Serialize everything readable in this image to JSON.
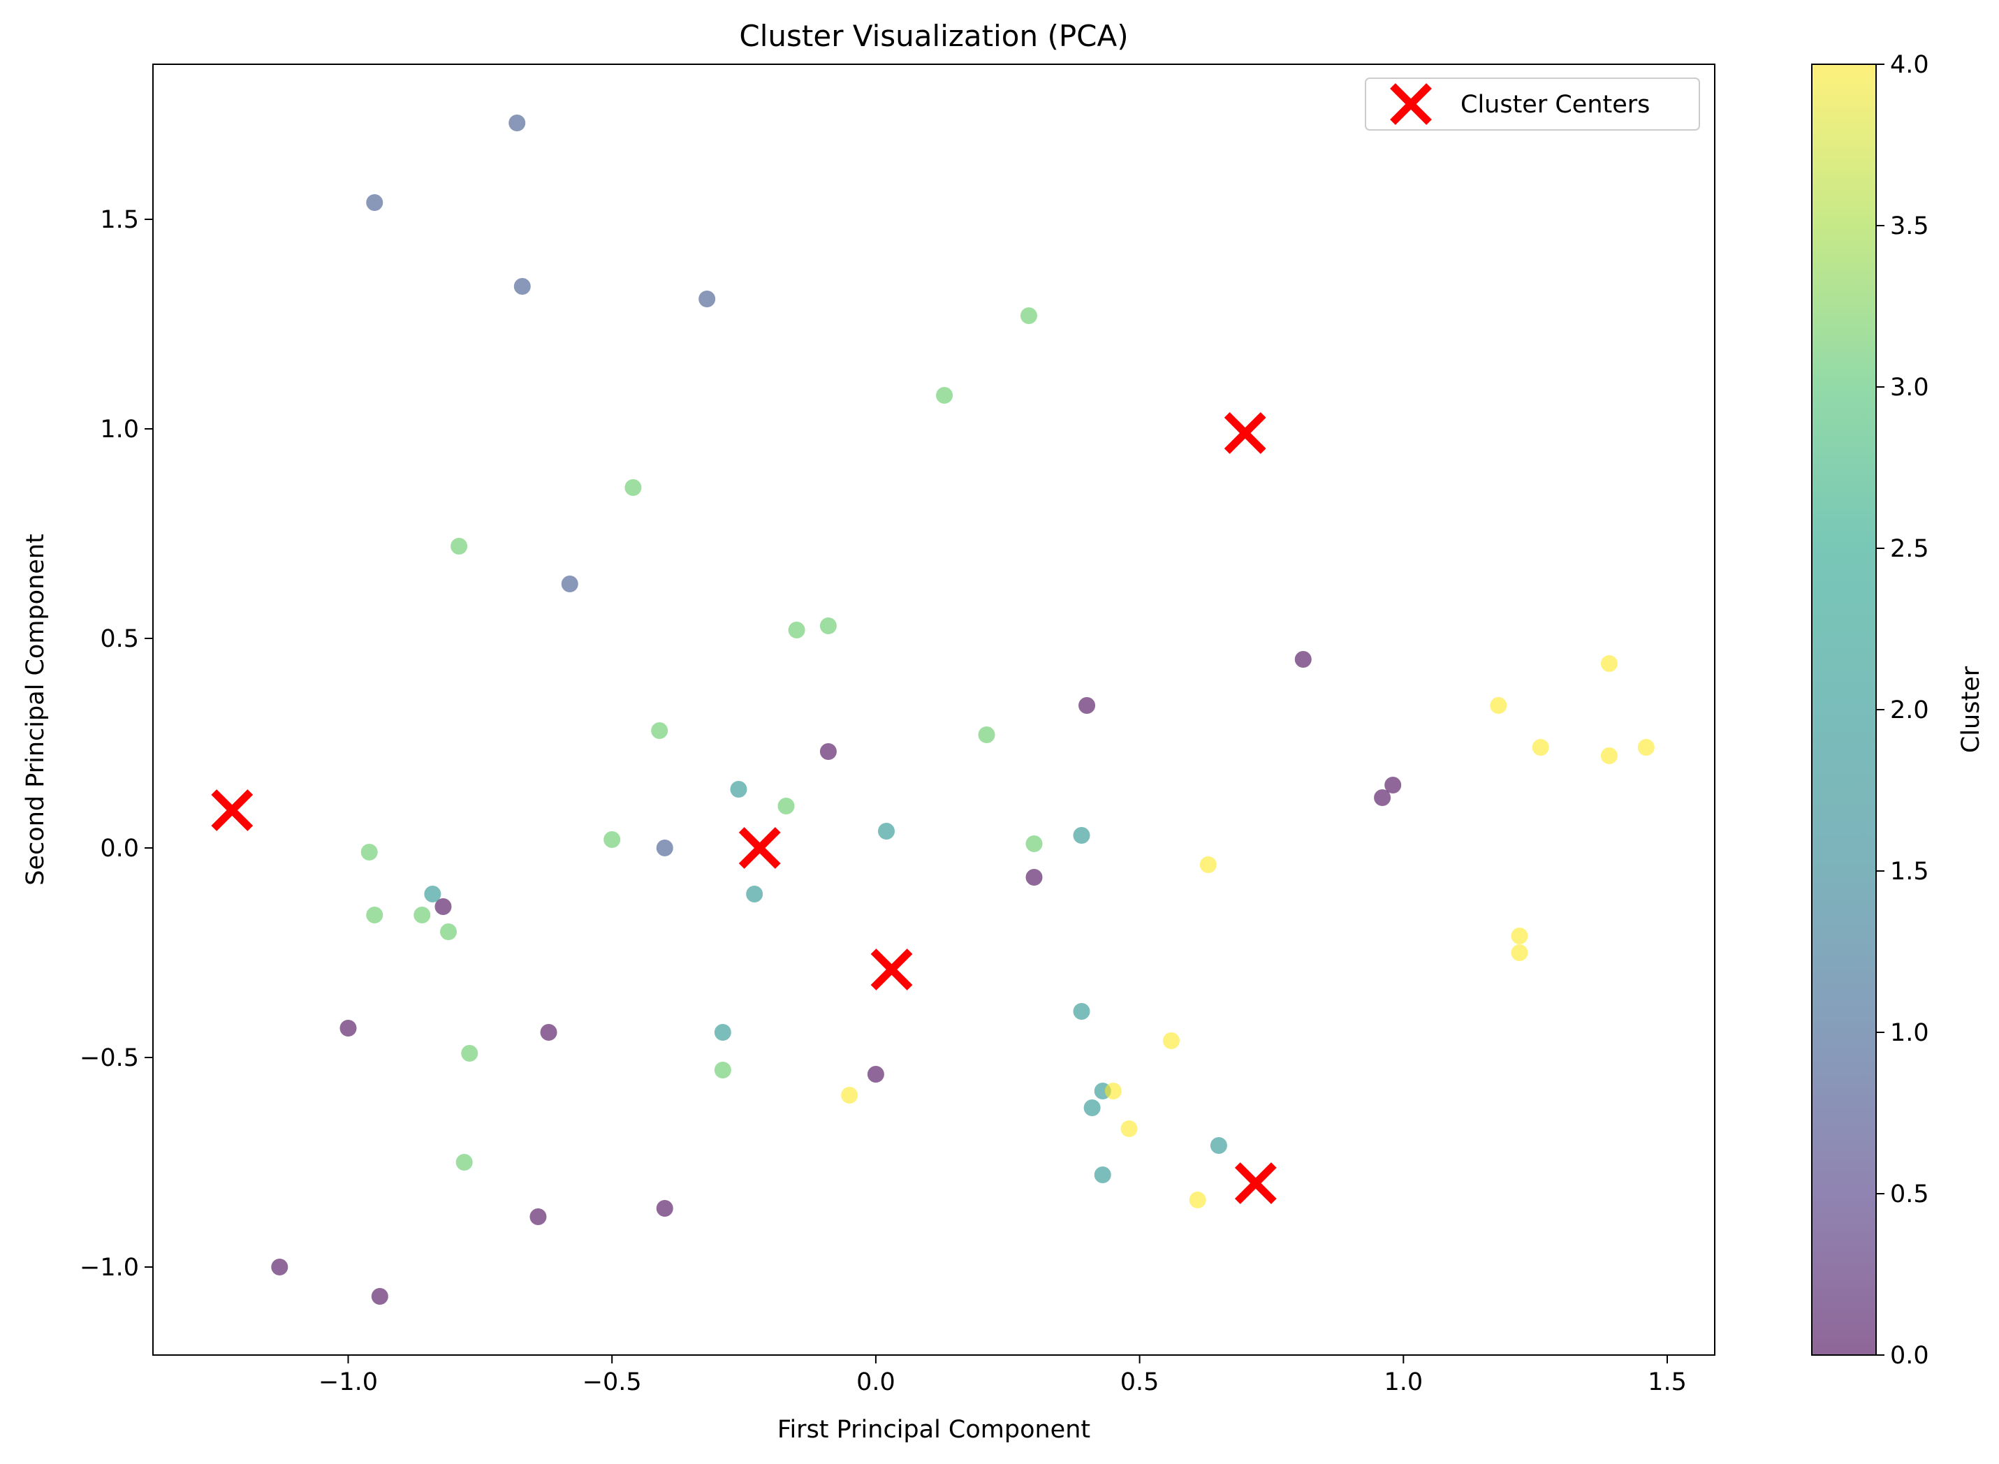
{
  "chart_data": {
    "type": "scatter",
    "title": "Cluster Visualization (PCA)",
    "xlabel": "First Principal Component",
    "ylabel": "Second Principal Component",
    "xlim": [
      -1.37,
      1.59
    ],
    "ylim": [
      -1.21,
      1.87
    ],
    "xticks": [
      -1.0,
      -0.5,
      0.0,
      0.5,
      1.0,
      1.5
    ],
    "xtick_labels": [
      "−1.0",
      "−0.5",
      "0.0",
      "0.5",
      "1.0",
      "1.5"
    ],
    "yticks": [
      -1.0,
      -0.5,
      0.0,
      0.5,
      1.0,
      1.5
    ],
    "ytick_labels": [
      "−1.0",
      "−0.5",
      "0.0",
      "0.5",
      "1.0",
      "1.5"
    ],
    "grid": false,
    "legend": {
      "position": "top-right",
      "entries": [
        "Cluster Centers"
      ]
    },
    "colorbar": {
      "label": "Cluster",
      "range": [
        0.0,
        4.0
      ],
      "ticks": [
        0.0,
        0.5,
        1.0,
        1.5,
        2.0,
        2.5,
        3.0,
        3.5,
        4.0
      ],
      "tick_labels": [
        "0.0",
        "0.5",
        "1.0",
        "1.5",
        "2.0",
        "2.5",
        "3.0",
        "3.5",
        "4.0"
      ],
      "colormap": "viridis",
      "alpha": 0.6
    },
    "center_color": "#ff0000",
    "series": [
      {
        "name": "Cluster Centers",
        "marker": "x",
        "points": [
          {
            "x": -1.22,
            "y": 0.09
          },
          {
            "x": -0.22,
            "y": 0.0
          },
          {
            "x": 0.03,
            "y": -0.29
          },
          {
            "x": 0.7,
            "y": 0.99
          },
          {
            "x": 0.72,
            "y": -0.8
          }
        ]
      },
      {
        "cluster": 0,
        "color": "#440154",
        "points": [
          {
            "x": -1.13,
            "y": -1.0
          },
          {
            "x": -0.94,
            "y": -1.07
          },
          {
            "x": -1.0,
            "y": -0.43
          },
          {
            "x": -0.82,
            "y": -0.14
          },
          {
            "x": -0.62,
            "y": -0.44
          },
          {
            "x": -0.64,
            "y": -0.88
          },
          {
            "x": -0.4,
            "y": -0.86
          },
          {
            "x": -0.09,
            "y": 0.23
          },
          {
            "x": 0.0,
            "y": -0.54
          },
          {
            "x": 0.3,
            "y": -0.07
          },
          {
            "x": 0.4,
            "y": 0.34
          },
          {
            "x": 0.81,
            "y": 0.45
          },
          {
            "x": 0.96,
            "y": 0.12
          },
          {
            "x": 0.98,
            "y": 0.15
          }
        ]
      },
      {
        "cluster": 1,
        "color": "#3b528b",
        "points": [
          {
            "x": -0.95,
            "y": 1.54
          },
          {
            "x": -0.68,
            "y": 1.73
          },
          {
            "x": -0.67,
            "y": 1.34
          },
          {
            "x": -0.32,
            "y": 1.31
          },
          {
            "x": -0.58,
            "y": 0.63
          },
          {
            "x": -0.4,
            "y": 0.0
          }
        ]
      },
      {
        "cluster": 2,
        "color": "#21918c",
        "points": [
          {
            "x": -0.84,
            "y": -0.11
          },
          {
            "x": -0.26,
            "y": 0.14
          },
          {
            "x": -0.23,
            "y": -0.11
          },
          {
            "x": -0.29,
            "y": -0.44
          },
          {
            "x": 0.02,
            "y": 0.04
          },
          {
            "x": 0.39,
            "y": 0.03
          },
          {
            "x": 0.39,
            "y": -0.39
          },
          {
            "x": 0.43,
            "y": -0.58
          },
          {
            "x": 0.41,
            "y": -0.62
          },
          {
            "x": 0.43,
            "y": -0.78
          },
          {
            "x": 0.65,
            "y": -0.71
          }
        ]
      },
      {
        "cluster": 3,
        "color": "#5ec962",
        "points": [
          {
            "x": 0.29,
            "y": 1.27
          },
          {
            "x": 0.13,
            "y": 1.08
          },
          {
            "x": -0.46,
            "y": 0.86
          },
          {
            "x": -0.79,
            "y": 0.72
          },
          {
            "x": -0.15,
            "y": 0.52
          },
          {
            "x": -0.09,
            "y": 0.53
          },
          {
            "x": -0.41,
            "y": 0.28
          },
          {
            "x": 0.21,
            "y": 0.27
          },
          {
            "x": -0.17,
            "y": 0.1
          },
          {
            "x": -0.5,
            "y": 0.02
          },
          {
            "x": 0.3,
            "y": 0.01
          },
          {
            "x": -0.96,
            "y": -0.01
          },
          {
            "x": -0.95,
            "y": -0.16
          },
          {
            "x": -0.86,
            "y": -0.16
          },
          {
            "x": -0.81,
            "y": -0.2
          },
          {
            "x": -0.77,
            "y": -0.49
          },
          {
            "x": -0.78,
            "y": -0.75
          },
          {
            "x": -0.29,
            "y": -0.53
          }
        ]
      },
      {
        "cluster": 4,
        "color": "#fde725",
        "points": [
          {
            "x": 1.39,
            "y": 0.44
          },
          {
            "x": 1.18,
            "y": 0.34
          },
          {
            "x": 1.26,
            "y": 0.24
          },
          {
            "x": 1.39,
            "y": 0.22
          },
          {
            "x": 1.46,
            "y": 0.24
          },
          {
            "x": 0.63,
            "y": -0.04
          },
          {
            "x": 1.22,
            "y": -0.21
          },
          {
            "x": 1.22,
            "y": -0.25
          },
          {
            "x": 0.56,
            "y": -0.46
          },
          {
            "x": 0.45,
            "y": -0.58
          },
          {
            "x": 0.48,
            "y": -0.67
          },
          {
            "x": 0.61,
            "y": -0.84
          },
          {
            "x": -0.05,
            "y": -0.59
          }
        ]
      }
    ]
  }
}
